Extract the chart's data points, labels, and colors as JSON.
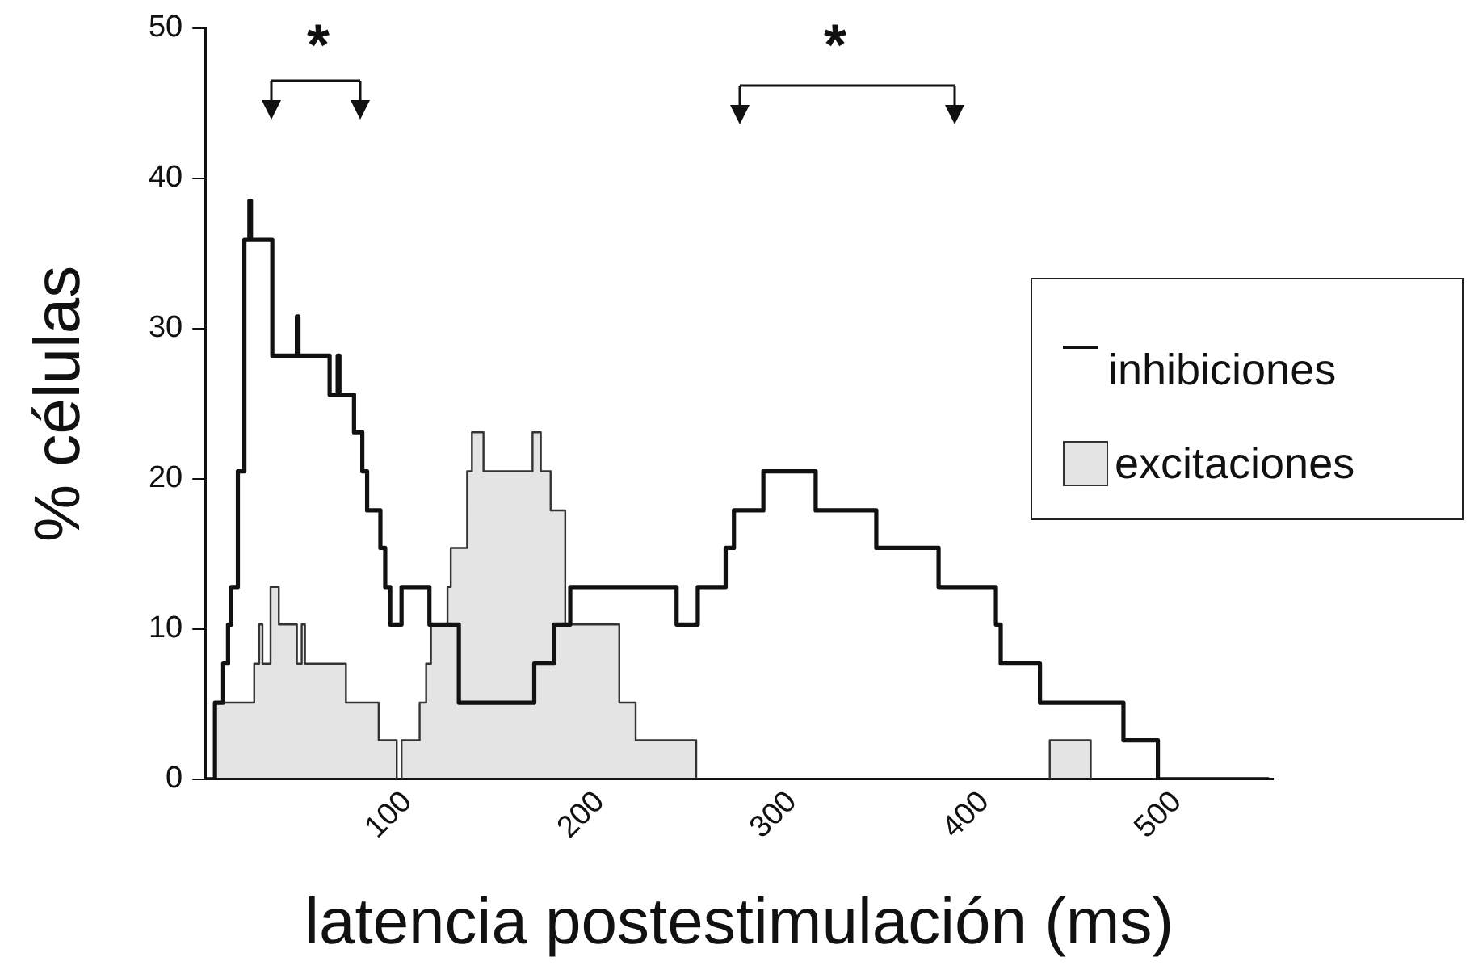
{
  "chart_data": {
    "type": "step",
    "xlabel": "latencia postestimulación (ms)",
    "ylabel": "% células",
    "xlim": [
      -5,
      550
    ],
    "xticks": [
      100,
      200,
      300,
      400,
      500
    ],
    "ylim": [
      0,
      50
    ],
    "yticks": [
      0,
      10,
      20,
      30,
      40,
      50
    ],
    "grid": false,
    "legend": "right",
    "marker": "none",
    "line_style": "solid",
    "annotations": [
      "*",
      "*"
    ],
    "series": [
      {
        "name": "inhibiciones",
        "color": "#111111",
        "x": [
          -5,
          0,
          4.3,
          6.8,
          8.5,
          11.9,
          15.3,
          17.9,
          18.7,
          29.8,
          42.6,
          43.4,
          59.6,
          63.8,
          64.7,
          72.3,
          76.6,
          79.1,
          86,
          88.5,
          91.1,
          97,
          111.5,
          126.8,
          166,
          176.2,
          184.7,
          240,
          251,
          265.5,
          269.8,
          285.1,
          312.3,
          343.8,
          376.2,
          406,
          408.5,
          428.9,
          472.3,
          490.2,
          548
        ],
        "values": [
          0,
          5.1,
          7.7,
          10.3,
          12.8,
          20.5,
          35.9,
          38.5,
          35.9,
          28.2,
          30.8,
          28.2,
          25.6,
          28.2,
          25.6,
          23.1,
          20.5,
          17.9,
          15.4,
          12.8,
          10.3,
          12.8,
          10.3,
          5.1,
          7.7,
          10.3,
          12.8,
          10.3,
          12.8,
          15.4,
          17.9,
          20.5,
          17.9,
          15.4,
          12.8,
          10.3,
          7.7,
          5.1,
          2.6,
          0,
          0
        ]
      },
      {
        "name": "excitaciones",
        "type": "area",
        "color": "#333333",
        "x": [
          -5,
          0,
          20.4,
          23,
          24.7,
          28.9,
          33.2,
          42.6,
          45.1,
          46.8,
          68.1,
          85.1,
          94.5,
          97,
          106.4,
          109.8,
          112.3,
          120.9,
          122.6,
          131.1,
          133.6,
          139.6,
          165.1,
          169.4,
          174.5,
          182.1,
          210.2,
          218.7,
          250.2,
          434,
          455.3,
          548
        ],
        "values": [
          0,
          5.1,
          7.7,
          10.3,
          7.7,
          12.8,
          10.3,
          7.7,
          10.3,
          7.7,
          5.1,
          2.6,
          0,
          2.6,
          5.1,
          7.7,
          10.3,
          12.8,
          15.4,
          20.5,
          23.1,
          20.5,
          23.1,
          20.5,
          17.9,
          10.3,
          5.1,
          2.6,
          0,
          2.6,
          0,
          0
        ]
      }
    ]
  }
}
